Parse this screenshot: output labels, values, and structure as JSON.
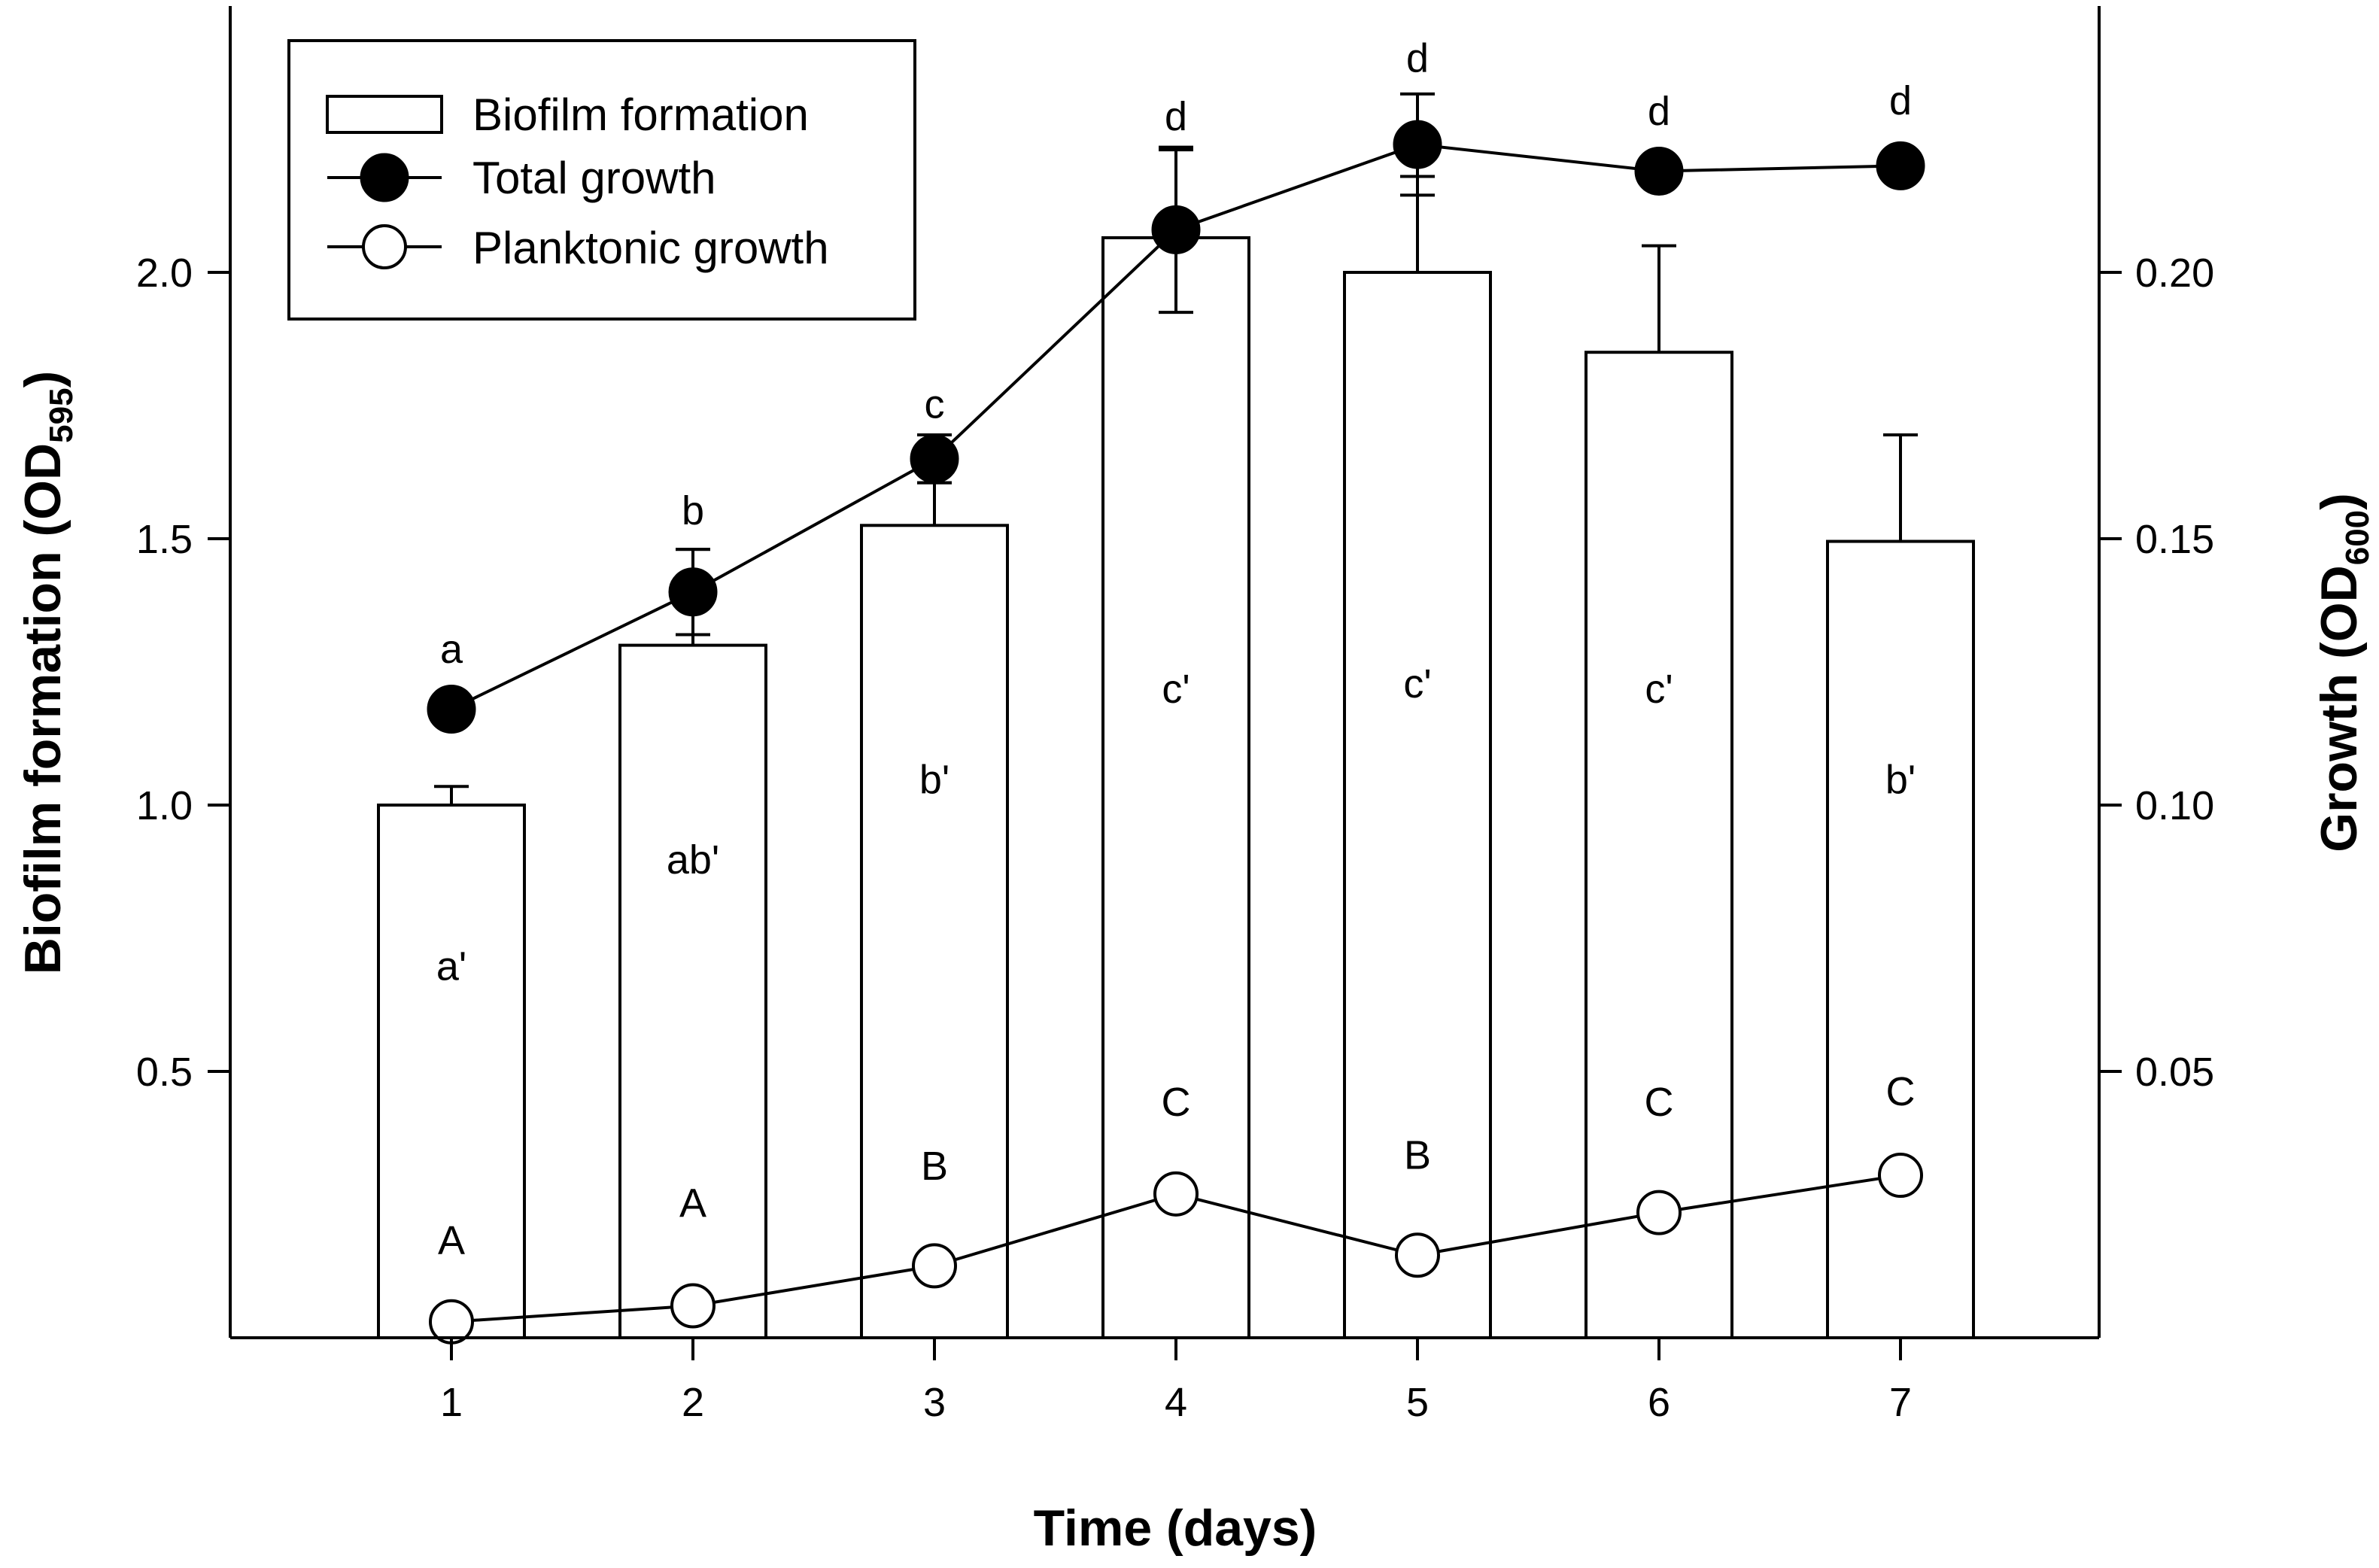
{
  "chart_data": {
    "type": "bar",
    "title": "",
    "xlabel": "Time (days)",
    "ylabel": {
      "text": "Biofilm formation (OD",
      "sub": "595",
      "close": ")"
    },
    "y2label": {
      "text": "Growth (OD",
      "sub": "600",
      "close": ")"
    },
    "categories": [
      "1",
      "2",
      "3",
      "4",
      "5",
      "6",
      "7"
    ],
    "ylim": [
      0,
      2.5
    ],
    "y2lim": [
      0,
      0.25
    ],
    "yticks": [
      0.5,
      1.0,
      1.5,
      2.0
    ],
    "ytick_labels": [
      "0.5",
      "1.0",
      "1.5",
      "2.0"
    ],
    "y2ticks": [
      0.05,
      0.1,
      0.15,
      0.2
    ],
    "y2tick_labels": [
      "0.05",
      "0.10",
      "0.15",
      "0.20"
    ],
    "legend_position": "top-left",
    "series": [
      {
        "name": "Biofilm formation",
        "kind": "bar",
        "axis": "left",
        "values": [
          1.0,
          1.3,
          1.525,
          2.065,
          2.0,
          1.85,
          1.495
        ],
        "errors": [
          0.035,
          0.18,
          0.08,
          0.165,
          0.18,
          0.2,
          0.2
        ],
        "letters": [
          "a'",
          "ab'",
          "b'",
          "c'",
          "c'",
          "c'",
          "b'"
        ],
        "letter_values": [
          0.7,
          0.9,
          1.05,
          1.22,
          1.23,
          1.22,
          1.05
        ]
      },
      {
        "name": "Total growth",
        "kind": "line",
        "marker": "filled-circle",
        "axis": "right",
        "values": [
          0.118,
          0.14,
          0.165,
          0.208,
          0.224,
          0.219,
          0.22
        ],
        "errors": [
          0.0,
          0.008,
          0.0045,
          0.0155,
          0.0095,
          0.0,
          0.0025
        ],
        "letters": [
          "a",
          "b",
          "c",
          "d",
          "d",
          "d",
          "d"
        ],
        "letter_values": [
          0.1295,
          0.1555,
          0.1755,
          0.2295,
          0.2405,
          0.2305,
          0.2325
        ]
      },
      {
        "name": "Planktonic growth",
        "kind": "line",
        "marker": "open-circle",
        "axis": "right",
        "values": [
          0.003,
          0.006,
          0.0135,
          0.027,
          0.0155,
          0.0235,
          0.0305
        ],
        "letters": [
          "A",
          "A",
          "B",
          "C",
          "B",
          "C",
          "C"
        ],
        "letter_values": [
          0.0185,
          0.0255,
          0.0325,
          0.0445,
          0.0345,
          0.0445,
          0.0465
        ]
      }
    ]
  }
}
